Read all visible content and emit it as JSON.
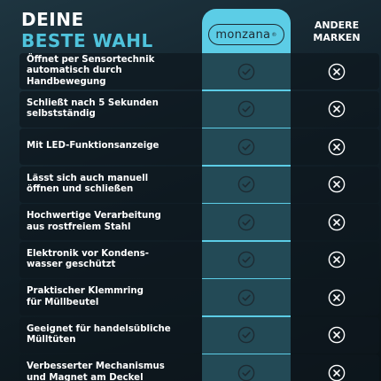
{
  "heading": {
    "line1": "DEINE",
    "line2": "BESTE WAHL"
  },
  "columns": {
    "brand": "monzana",
    "brand_mark": "®",
    "other": "ANDERE\nMARKEN"
  },
  "colors": {
    "accent": "#5ccde6",
    "accent_text": "#4fc3dc",
    "background": "#122029",
    "row_bar": "#0e181e"
  },
  "icons": {
    "brand_column": "check-circle-icon",
    "other_column": "x-circle-icon"
  },
  "features": [
    {
      "label": "Öffnet per Sensortechnik\nautomatisch durch Handbewegung",
      "brand": true,
      "other": false
    },
    {
      "label": "Schließt nach 5 Sekunden\nselbstständig",
      "brand": true,
      "other": false
    },
    {
      "label": "Mit LED-Funktionsanzeige",
      "brand": true,
      "other": false
    },
    {
      "label": "Lässt sich auch manuell\nöffnen und schließen",
      "brand": true,
      "other": false
    },
    {
      "label": "Hochwertige Verarbeitung\naus rostfreiem Stahl",
      "brand": true,
      "other": false
    },
    {
      "label": "Elektronik vor Kondens-\nwasser geschützt",
      "brand": true,
      "other": false
    },
    {
      "label": "Praktischer Klemmring\nfür Müllbeutel",
      "brand": true,
      "other": false
    },
    {
      "label": "Geeignet für handelsübliche\nMülltüten",
      "brand": true,
      "other": false
    },
    {
      "label": "Verbesserter Mechanismus\nund Magnet am Deckel",
      "brand": true,
      "other": false
    }
  ]
}
